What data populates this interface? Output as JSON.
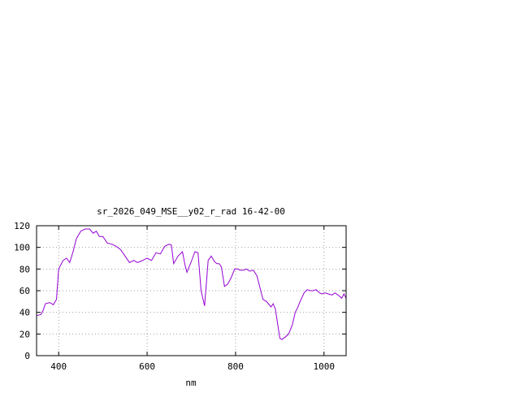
{
  "chart_data": {
    "type": "line",
    "title": "sr_2026_049_MSE__y02_r_rad 16-42-00",
    "xlabel": "nm",
    "ylabel": "",
    "xlim": [
      350,
      1050
    ],
    "ylim": [
      0,
      120
    ],
    "xticks": [
      400,
      600,
      800,
      1000
    ],
    "yticks": [
      0,
      20,
      40,
      60,
      80,
      100,
      120
    ],
    "grid": true,
    "grid_style": "dotted",
    "legend": "none",
    "colors": {
      "series": "#9400d3",
      "axis": "#000000",
      "grid": "#a0a0a0",
      "background": "#ffffff"
    },
    "series": [
      {
        "x": [
          350,
          360,
          365,
          370,
          380,
          388,
          395,
          400,
          410,
          418,
          425,
          432,
          440,
          450,
          460,
          470,
          478,
          485,
          492,
          500,
          510,
          520,
          530,
          540,
          550,
          560,
          570,
          578,
          585,
          590,
          595,
          600,
          610,
          620,
          630,
          640,
          650,
          655,
          660,
          670,
          680,
          686,
          690,
          700,
          708,
          715,
          722,
          730,
          738,
          745,
          752,
          758,
          763,
          768,
          775,
          782,
          790,
          798,
          805,
          810,
          818,
          825,
          832,
          840,
          848,
          855,
          862,
          870,
          880,
          885,
          890,
          895,
          900,
          905,
          912,
          920,
          928,
          935,
          940,
          946,
          955,
          962,
          968,
          975,
          982,
          990,
          995,
          1002,
          1010,
          1018,
          1025,
          1035,
          1040,
          1045,
          1050
        ],
        "values": [
          37,
          38,
          42,
          48,
          49,
          47,
          52,
          80,
          88,
          90,
          86,
          95,
          108,
          115,
          117,
          117,
          113,
          115,
          110,
          110,
          104,
          103,
          101,
          98,
          92,
          86,
          88,
          86,
          87,
          88,
          89,
          90,
          88,
          95,
          94,
          101,
          103,
          102,
          85,
          92,
          96,
          83,
          77,
          87,
          96,
          95,
          60,
          46,
          88,
          92,
          87,
          85,
          85,
          82,
          64,
          66,
          72,
          80,
          80,
          79,
          79,
          80,
          78,
          79,
          74,
          63,
          52,
          50,
          45,
          48,
          43,
          30,
          16,
          15,
          17,
          20,
          28,
          40,
          44,
          50,
          58,
          61,
          60,
          60,
          61,
          58,
          57,
          58,
          57,
          56,
          58,
          55,
          53,
          57,
          53
        ]
      }
    ]
  }
}
